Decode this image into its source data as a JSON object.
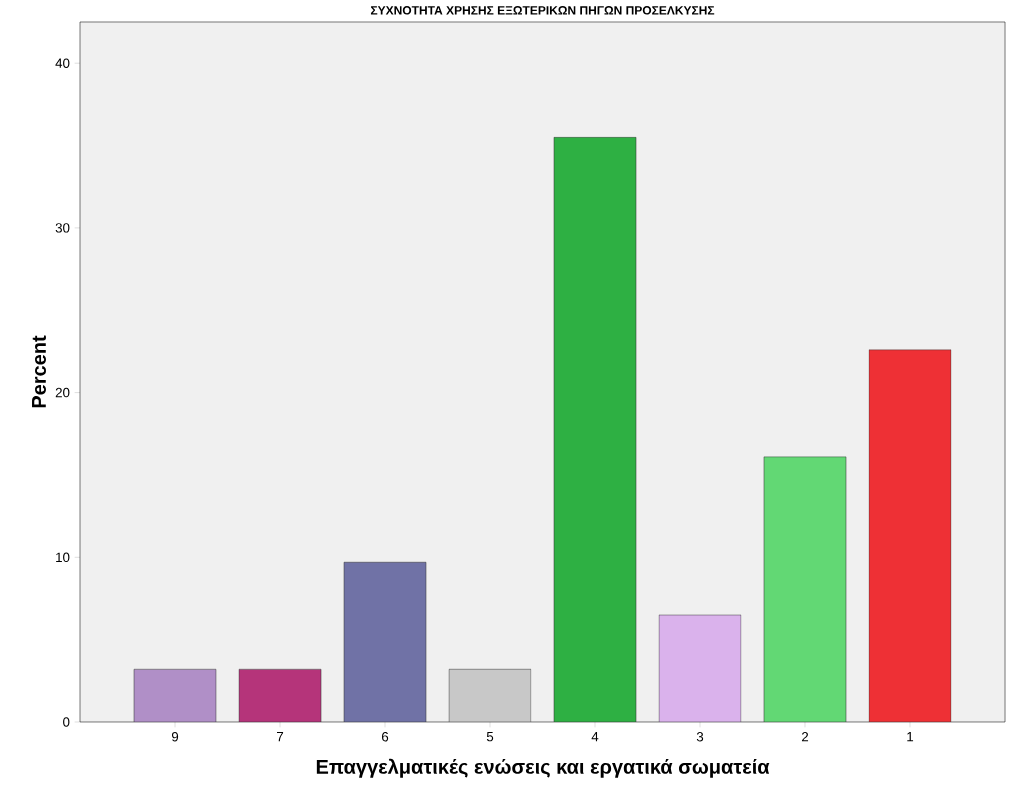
{
  "chart_data": {
    "type": "bar",
    "title": "ΣΥΧΝΟΤΗΤΑ ΧΡΗΣΗΣ ΕΞΩΤΕΡΙΚΩΝ ΠΗΓΩΝ ΠΡΟΣΕΛΚΥΣΗΣ",
    "xlabel": "Επαγγελματικές ενώσεις και εργατικά σωματεία",
    "ylabel": "Percent",
    "categories": [
      "9",
      "7",
      "6",
      "5",
      "4",
      "3",
      "2",
      "1"
    ],
    "values": [
      3.2,
      3.2,
      9.7,
      3.2,
      35.5,
      6.5,
      16.1,
      22.6
    ],
    "colors": [
      "#b08fc7",
      "#b5347a",
      "#7072a6",
      "#c8c8c8",
      "#2eb043",
      "#dab2ec",
      "#62d874",
      "#ee3035"
    ],
    "ylim": [
      0,
      42.5
    ],
    "yticks": [
      0,
      10,
      20,
      30,
      40
    ],
    "grid": false
  }
}
